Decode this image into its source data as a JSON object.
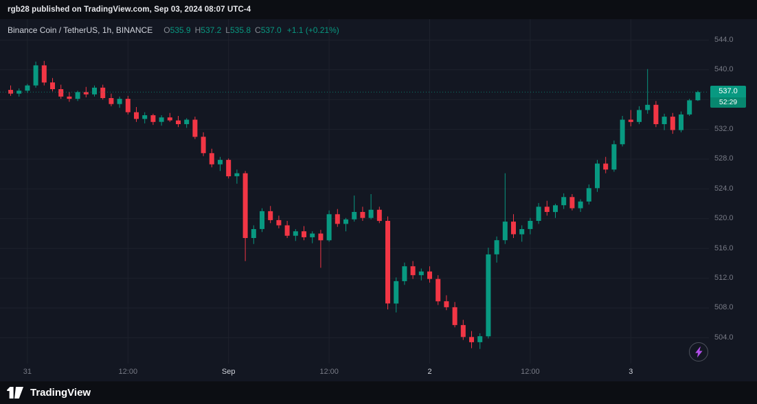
{
  "attribution": {
    "text": "rgb28 published on TradingView.com, Sep 03, 2024 08:07 UTC-4"
  },
  "legend": {
    "symbol": "Binance Coin / TetherUS, 1h, BINANCE",
    "ohlc": [
      {
        "key": "O",
        "value": "535.9"
      },
      {
        "key": "H",
        "value": "537.2"
      },
      {
        "key": "L",
        "value": "535.8"
      },
      {
        "key": "C",
        "value": "537.0"
      }
    ],
    "change": "+1.1 (+0.21%)"
  },
  "price_axis": {
    "labels": [
      "544.0",
      "540.0",
      "532.0",
      "528.0",
      "524.0",
      "520.0",
      "516.0",
      "512.0",
      "508.0",
      "504.0"
    ],
    "label_values": [
      544,
      540,
      532,
      528,
      524,
      520,
      516,
      512,
      508,
      504
    ],
    "grid_values": [
      544,
      540,
      536,
      532,
      528,
      524,
      520,
      516,
      512,
      508,
      504
    ],
    "last_price": {
      "value": "537.0",
      "countdown": "52:29",
      "price": 537.0
    }
  },
  "time_axis": {
    "ticks": [
      {
        "label": "31",
        "index": 2,
        "major": false
      },
      {
        "label": "12:00",
        "index": 14,
        "major": false
      },
      {
        "label": "Sep",
        "index": 26,
        "major": true
      },
      {
        "label": "12:00",
        "index": 38,
        "major": false
      },
      {
        "label": "2",
        "index": 50,
        "major": true
      },
      {
        "label": "12:00",
        "index": 62,
        "major": false
      },
      {
        "label": "3",
        "index": 74,
        "major": true
      }
    ]
  },
  "footer": {
    "brand": "TradingView"
  },
  "colors": {
    "up": "#089981",
    "down": "#f23645",
    "chart_bg": "#131722",
    "chrome_bg": "#0c0e13",
    "grid": "#1e222d",
    "axis_text": "#787b86",
    "legend_text": "#d1d4dc",
    "badge_text": "#ffffff",
    "bolt": "#b14ee8"
  },
  "chart_data": {
    "type": "candlestick",
    "symbol": "Binance Coin / TetherUS",
    "exchange": "BINANCE",
    "interval": "1h",
    "ylim": [
      502,
      546
    ],
    "grid": true,
    "columns": [
      "time",
      "open",
      "high",
      "low",
      "close"
    ],
    "candles": [
      [
        "Aug 30 22:00",
        537.3,
        537.9,
        536.5,
        536.8
      ],
      [
        "Aug 30 23:00",
        536.8,
        537.5,
        536.4,
        537.2
      ],
      [
        "Aug 31 00:00",
        537.2,
        538.1,
        536.9,
        537.9
      ],
      [
        "Aug 31 01:00",
        537.9,
        541.1,
        537.6,
        540.6
      ],
      [
        "Aug 31 02:00",
        540.6,
        541.2,
        537.9,
        538.3
      ],
      [
        "Aug 31 03:00",
        538.3,
        538.9,
        537.1,
        537.4
      ],
      [
        "Aug 31 04:00",
        537.4,
        538.0,
        536.1,
        536.4
      ],
      [
        "Aug 31 05:00",
        536.4,
        537.0,
        535.7,
        536.1
      ],
      [
        "Aug 31 06:00",
        536.1,
        537.2,
        535.8,
        537.0
      ],
      [
        "Aug 31 07:00",
        537.0,
        537.7,
        536.3,
        536.7
      ],
      [
        "Aug 31 08:00",
        536.7,
        537.9,
        536.4,
        537.6
      ],
      [
        "Aug 31 09:00",
        537.6,
        538.0,
        536.0,
        536.2
      ],
      [
        "Aug 31 10:00",
        536.2,
        536.8,
        535.1,
        535.4
      ],
      [
        "Aug 31 11:00",
        535.4,
        536.4,
        534.9,
        536.1
      ],
      [
        "Aug 31 12:00",
        536.1,
        536.5,
        534.0,
        534.3
      ],
      [
        "Aug 31 13:00",
        534.3,
        535.0,
        533.0,
        533.4
      ],
      [
        "Aug 31 14:00",
        533.4,
        534.3,
        532.8,
        533.9
      ],
      [
        "Aug 31 15:00",
        533.9,
        534.1,
        532.6,
        533.0
      ],
      [
        "Aug 31 16:00",
        533.0,
        533.9,
        532.5,
        533.6
      ],
      [
        "Aug 31 17:00",
        533.6,
        534.2,
        533.0,
        533.2
      ],
      [
        "Aug 31 18:00",
        533.2,
        533.8,
        532.3,
        532.7
      ],
      [
        "Aug 31 19:00",
        532.7,
        533.5,
        532.2,
        533.3
      ],
      [
        "Aug 31 20:00",
        533.3,
        533.7,
        530.7,
        531.0
      ],
      [
        "Aug 31 21:00",
        531.0,
        531.6,
        528.4,
        528.8
      ],
      [
        "Aug 31 22:00",
        528.8,
        529.4,
        526.9,
        527.3
      ],
      [
        "Aug 31 23:00",
        527.3,
        528.3,
        526.4,
        527.9
      ],
      [
        "Sep 01 00:00",
        527.9,
        528.1,
        525.4,
        525.7
      ],
      [
        "Sep 01 01:00",
        525.7,
        526.6,
        524.7,
        526.1
      ],
      [
        "Sep 01 02:00",
        526.1,
        526.4,
        514.3,
        517.4
      ],
      [
        "Sep 01 03:00",
        517.4,
        519.1,
        516.6,
        518.6
      ],
      [
        "Sep 01 04:00",
        518.6,
        521.4,
        518.2,
        521.0
      ],
      [
        "Sep 01 05:00",
        521.0,
        521.7,
        519.4,
        519.8
      ],
      [
        "Sep 01 06:00",
        519.8,
        520.4,
        518.7,
        519.1
      ],
      [
        "Sep 01 07:00",
        519.1,
        519.7,
        517.4,
        517.7
      ],
      [
        "Sep 01 08:00",
        517.7,
        518.6,
        517.0,
        518.3
      ],
      [
        "Sep 01 09:00",
        518.3,
        519.0,
        517.1,
        517.5
      ],
      [
        "Sep 01 10:00",
        517.5,
        518.3,
        516.7,
        518.0
      ],
      [
        "Sep 01 11:00",
        518.0,
        518.5,
        513.4,
        517.1
      ],
      [
        "Sep 01 12:00",
        517.1,
        521.1,
        516.9,
        520.6
      ],
      [
        "Sep 01 13:00",
        520.6,
        521.3,
        518.9,
        519.3
      ],
      [
        "Sep 01 14:00",
        519.3,
        520.1,
        518.3,
        519.9
      ],
      [
        "Sep 01 15:00",
        519.9,
        523.1,
        519.6,
        520.9
      ],
      [
        "Sep 01 16:00",
        520.9,
        521.6,
        519.7,
        520.1
      ],
      [
        "Sep 01 17:00",
        520.1,
        523.3,
        519.9,
        521.2
      ],
      [
        "Sep 01 18:00",
        521.2,
        521.6,
        519.4,
        519.7
      ],
      [
        "Sep 01 19:00",
        519.7,
        520.3,
        507.8,
        508.6
      ],
      [
        "Sep 01 20:00",
        508.6,
        512.1,
        507.4,
        511.6
      ],
      [
        "Sep 01 21:00",
        511.6,
        514.1,
        511.1,
        513.6
      ],
      [
        "Sep 01 22:00",
        513.6,
        514.3,
        511.9,
        512.4
      ],
      [
        "Sep 01 23:00",
        512.4,
        513.3,
        511.7,
        512.9
      ],
      [
        "Sep 02 00:00",
        512.9,
        513.6,
        511.4,
        511.9
      ],
      [
        "Sep 02 01:00",
        511.9,
        512.4,
        508.4,
        508.9
      ],
      [
        "Sep 02 02:00",
        508.9,
        509.7,
        507.7,
        508.1
      ],
      [
        "Sep 02 03:00",
        508.1,
        508.8,
        505.4,
        505.7
      ],
      [
        "Sep 02 04:00",
        505.7,
        506.4,
        503.7,
        504.1
      ],
      [
        "Sep 02 05:00",
        504.1,
        504.9,
        502.6,
        503.4
      ],
      [
        "Sep 02 06:00",
        503.4,
        504.6,
        502.5,
        504.2
      ],
      [
        "Sep 02 07:00",
        504.2,
        516.1,
        503.9,
        515.2
      ],
      [
        "Sep 02 08:00",
        515.2,
        517.6,
        514.1,
        517.1
      ],
      [
        "Sep 02 09:00",
        517.1,
        526.1,
        516.6,
        519.6
      ],
      [
        "Sep 02 10:00",
        519.6,
        520.6,
        517.4,
        517.9
      ],
      [
        "Sep 02 11:00",
        517.9,
        519.1,
        516.9,
        518.6
      ],
      [
        "Sep 02 12:00",
        518.6,
        520.1,
        517.9,
        519.7
      ],
      [
        "Sep 02 13:00",
        519.7,
        522.1,
        519.3,
        521.6
      ],
      [
        "Sep 02 14:00",
        521.6,
        522.4,
        520.4,
        520.9
      ],
      [
        "Sep 02 15:00",
        520.9,
        522.0,
        520.1,
        521.8
      ],
      [
        "Sep 02 16:00",
        521.8,
        523.4,
        521.3,
        522.9
      ],
      [
        "Sep 02 17:00",
        522.9,
        523.3,
        521.1,
        521.4
      ],
      [
        "Sep 02 18:00",
        521.4,
        522.6,
        520.9,
        522.3
      ],
      [
        "Sep 02 19:00",
        522.3,
        524.6,
        521.9,
        524.1
      ],
      [
        "Sep 02 20:00",
        524.1,
        527.9,
        523.6,
        527.4
      ],
      [
        "Sep 02 21:00",
        527.4,
        528.3,
        526.1,
        526.6
      ],
      [
        "Sep 02 22:00",
        526.6,
        530.5,
        526.3,
        530.0
      ],
      [
        "Sep 02 23:00",
        530.0,
        533.8,
        529.7,
        533.3
      ],
      [
        "Sep 03 00:00",
        533.3,
        534.6,
        532.4,
        533.0
      ],
      [
        "Sep 03 01:00",
        533.0,
        535.1,
        532.7,
        534.6
      ],
      [
        "Sep 03 02:00",
        534.6,
        540.1,
        534.1,
        535.3
      ],
      [
        "Sep 03 03:00",
        535.3,
        535.8,
        532.3,
        532.7
      ],
      [
        "Sep 03 04:00",
        532.7,
        534.1,
        531.9,
        533.7
      ],
      [
        "Sep 03 05:00",
        533.7,
        534.2,
        531.4,
        531.9
      ],
      [
        "Sep 03 06:00",
        531.9,
        534.4,
        531.6,
        534.0
      ],
      [
        "Sep 03 07:00",
        534.0,
        536.1,
        533.8,
        535.9
      ],
      [
        "Sep 03 08:00",
        535.9,
        537.2,
        535.8,
        537.0
      ]
    ]
  }
}
